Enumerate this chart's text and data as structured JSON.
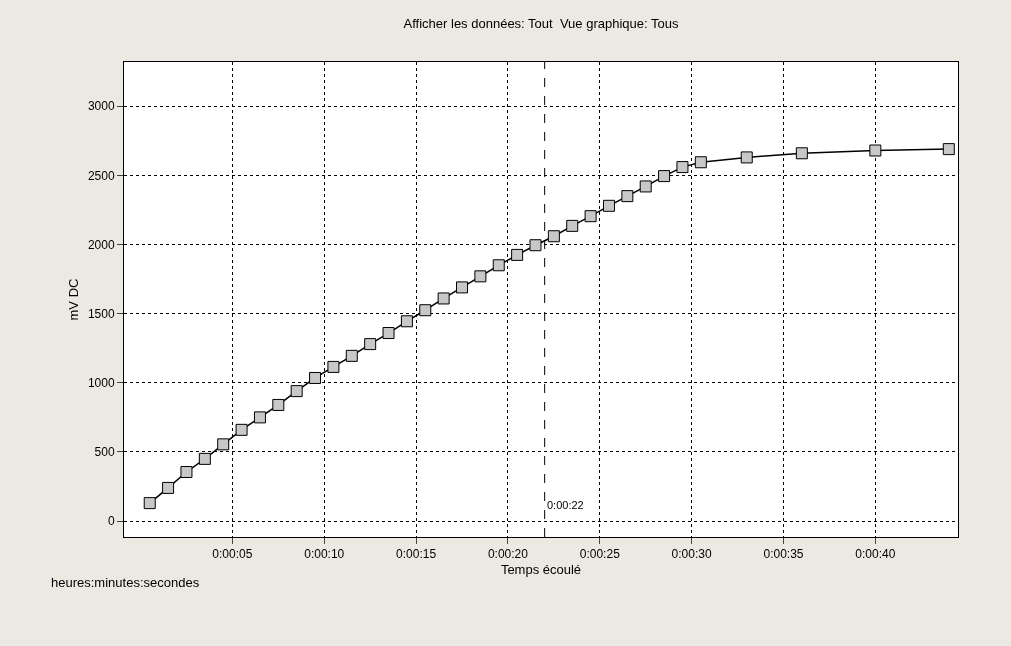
{
  "chart_data": {
    "type": "line",
    "title": "Afficher les données: Tout  Vue graphique: Tous",
    "xlabel": "Temps écoulé",
    "ylabel": "mV DC",
    "annotations": [
      "heures:minutes:secondes"
    ],
    "x": [
      0.5,
      1.5,
      2.5,
      3.5,
      4.5,
      5.5,
      6.5,
      7.5,
      8.5,
      9.5,
      10.5,
      11.5,
      12.5,
      13.5,
      14.5,
      15.5,
      16.5,
      17.5,
      18.5,
      19.5,
      20.5,
      21.5,
      22.5,
      23.5,
      24.5,
      25.5,
      26.5,
      27.5,
      28.5,
      29.5,
      30.5,
      33,
      36,
      40,
      44
    ],
    "series": [
      {
        "color": "#000000",
        "values": [
          130,
          240,
          355,
          450,
          555,
          660,
          750,
          840,
          940,
          1035,
          1115,
          1195,
          1280,
          1360,
          1445,
          1525,
          1610,
          1690,
          1770,
          1850,
          1925,
          1995,
          2060,
          2135,
          2205,
          2280,
          2350,
          2420,
          2495,
          2560,
          2595,
          2630,
          2660,
          2680,
          2690
        ]
      }
    ],
    "xlim": [
      -0.9,
      44.5
    ],
    "ylim": [
      -115,
      3320
    ],
    "xticks": [
      {
        "value": 5,
        "label": "0:00:05"
      },
      {
        "value": 10,
        "label": "0:00:10"
      },
      {
        "value": 15,
        "label": "0:00:15"
      },
      {
        "value": 20,
        "label": "0:00:20"
      },
      {
        "value": 25,
        "label": "0:00:25"
      },
      {
        "value": 30,
        "label": "0:00:30"
      },
      {
        "value": 35,
        "label": "0:00:35"
      },
      {
        "value": 40,
        "label": "0:00:40"
      }
    ],
    "yticks": [
      0,
      500,
      1000,
      1500,
      2000,
      2500,
      3000
    ],
    "ref_lines": [
      {
        "axis": "x",
        "value": 22,
        "label": "0:00:22",
        "color": "#000000",
        "line_style": "dashed"
      }
    ],
    "grid": true,
    "marker": "square",
    "line_style": "solid"
  }
}
